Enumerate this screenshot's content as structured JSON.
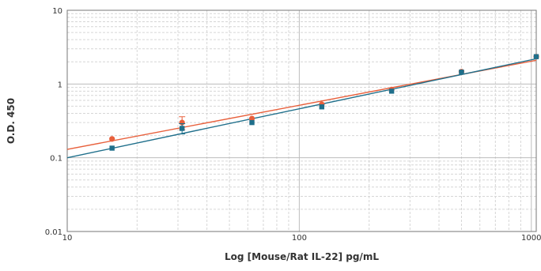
{
  "chart_data": {
    "type": "scatter",
    "xscale": "log",
    "yscale": "log",
    "xlim": [
      10,
      1050
    ],
    "ylim": [
      0.01,
      10
    ],
    "xticks": [
      {
        "value": 10,
        "label": "10"
      },
      {
        "value": 100,
        "label": "100"
      },
      {
        "value": 1000,
        "label": "1000"
      }
    ],
    "yticks": [
      {
        "value": 0.01,
        "label": "0.01"
      },
      {
        "value": 0.1,
        "label": "0.1"
      },
      {
        "value": 1,
        "label": "1"
      },
      {
        "value": 10,
        "label": "10"
      }
    ],
    "xlabel": "Log [Mouse/Rat IL-22] pg/mL",
    "ylabel": "O.D. 450",
    "grid": true,
    "series": [
      {
        "color": "#e8603c",
        "marker": "circle",
        "points": [
          {
            "x": 15.6,
            "y": 0.18
          },
          {
            "x": 31.25,
            "y": 0.3,
            "err": 0.06
          },
          {
            "x": 62.5,
            "y": 0.34
          },
          {
            "x": 125,
            "y": 0.53
          },
          {
            "x": 250,
            "y": 0.84
          },
          {
            "x": 500,
            "y": 1.47
          },
          {
            "x": 1050,
            "y": 2.35
          }
        ],
        "fit_line": [
          {
            "x": 10,
            "y": 0.13
          },
          {
            "x": 1050,
            "y": 2.1
          }
        ]
      },
      {
        "color": "#1f6f8b",
        "marker": "square",
        "points": [
          {
            "x": 15.6,
            "y": 0.135
          },
          {
            "x": 31.25,
            "y": 0.25,
            "err": 0.04
          },
          {
            "x": 62.5,
            "y": 0.3
          },
          {
            "x": 125,
            "y": 0.49
          },
          {
            "x": 250,
            "y": 0.8
          },
          {
            "x": 500,
            "y": 1.45
          },
          {
            "x": 1050,
            "y": 2.35
          }
        ],
        "fit_line": [
          {
            "x": 10,
            "y": 0.1
          },
          {
            "x": 1050,
            "y": 2.2
          }
        ]
      }
    ]
  }
}
